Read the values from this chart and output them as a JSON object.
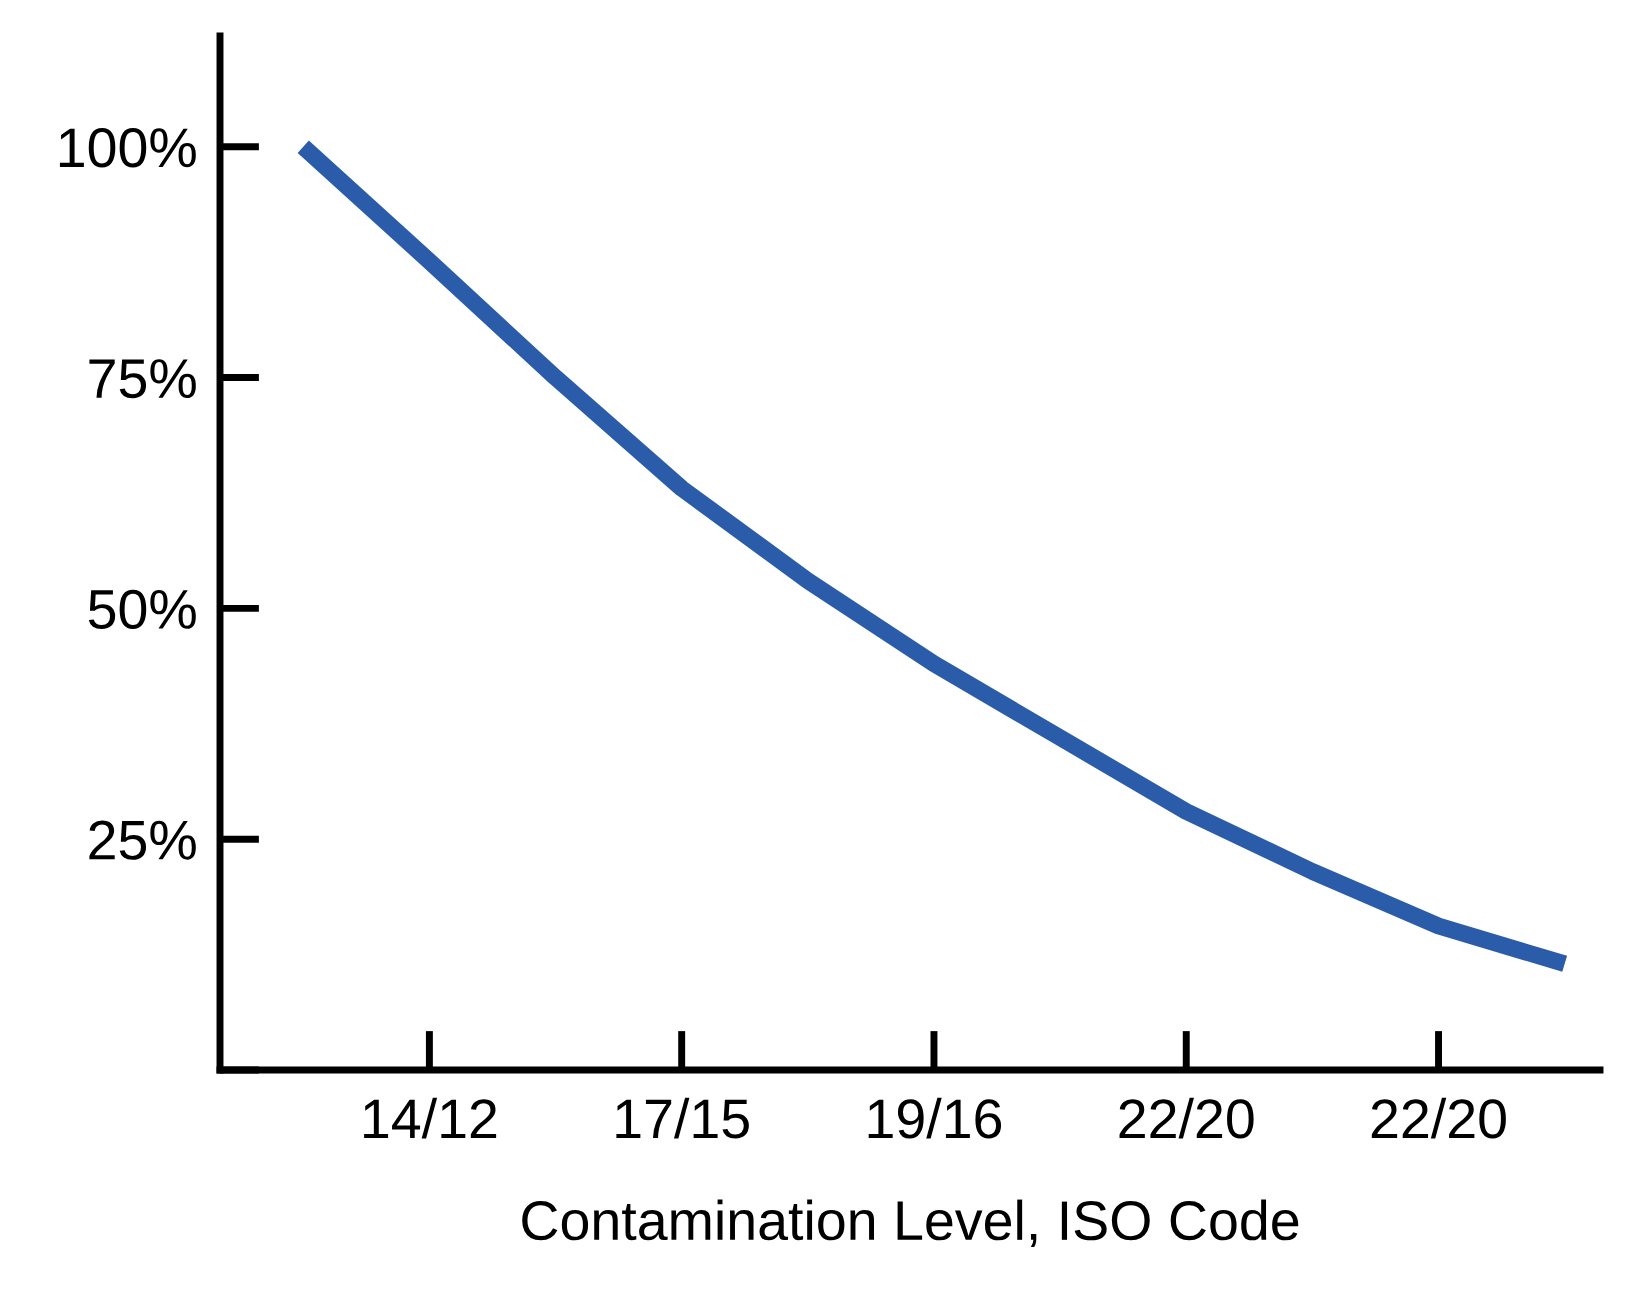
{
  "chart_data": {
    "type": "line",
    "xlabel": "Contamination Level, ISO Code",
    "categories": [
      null,
      "14/12",
      null,
      "17/15",
      null,
      "19/16",
      null,
      "22/20",
      null,
      "22/20",
      null
    ],
    "series": [
      {
        "color": "#2a5caa",
        "values": [
          100,
          87.6,
          75,
          63,
          53,
          44,
          36,
          28,
          21.5,
          15.6,
          11.5
        ]
      }
    ],
    "ylim": [
      0,
      112
    ],
    "yticks": [
      {
        "value": 0,
        "label": null
      },
      {
        "value": 25,
        "label": "25%"
      },
      {
        "value": 50,
        "label": "50%"
      },
      {
        "value": 75,
        "label": "75%"
      },
      {
        "value": 100,
        "label": "100%"
      }
    ],
    "grid": false,
    "marker": "none",
    "line_style": "solid"
  }
}
